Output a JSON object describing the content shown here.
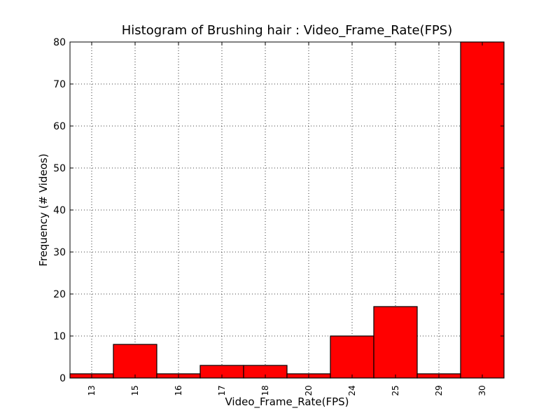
{
  "chart_data": {
    "type": "bar",
    "title": "Histogram of Brushing hair : Video_Frame_Rate(FPS)",
    "xlabel": "Video_Frame_Rate(FPS)",
    "ylabel": "Frequency (# Videos)",
    "categories": [
      "13",
      "15",
      "16",
      "17",
      "18",
      "20",
      "24",
      "25",
      "29",
      "30"
    ],
    "values": [
      1,
      8,
      1,
      3,
      3,
      1,
      10,
      17,
      1,
      80
    ],
    "ylim": [
      0,
      80
    ],
    "yticks": [
      0,
      10,
      20,
      30,
      40,
      50,
      60,
      70,
      80
    ],
    "grid": true,
    "bar_color": "#ff0000",
    "edge_color": "#000000"
  }
}
